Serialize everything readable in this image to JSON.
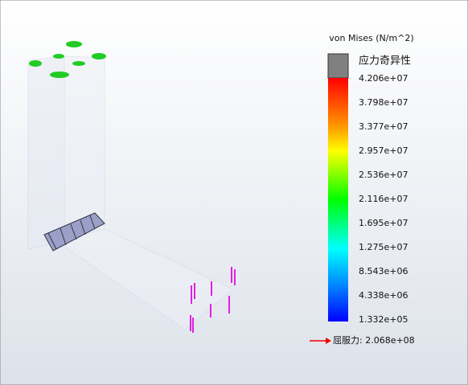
{
  "legend": {
    "title": "von Mises (N/m^2)",
    "singularity_label": "应力奇异性",
    "ticks": [
      "4.206e+07",
      "3.798e+07",
      "3.377e+07",
      "2.957e+07",
      "2.536e+07",
      "2.116e+07",
      "1.695e+07",
      "1.275e+07",
      "8.543e+06",
      "4.338e+06",
      "1.332e+05"
    ],
    "yield_label": "屈服力: 2.068e+08"
  }
}
